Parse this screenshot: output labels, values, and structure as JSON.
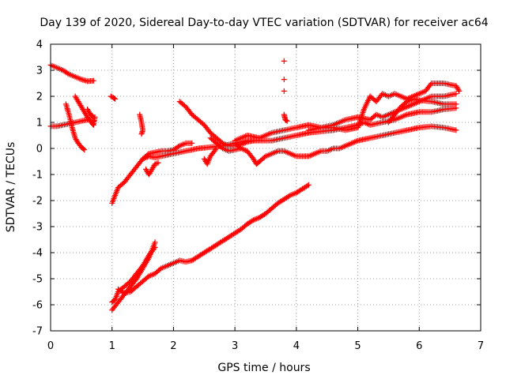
{
  "chart_data": {
    "type": "scatter",
    "title": "Day 139 of 2020, Sidereal Day-to-day VTEC variation (SDTVAR) for receiver ac64",
    "xlabel": "GPS time / hours",
    "ylabel": "SDTVAR / TECUs",
    "xlim": [
      0,
      7
    ],
    "ylim": [
      -7,
      4
    ],
    "xticks": [
      0,
      1,
      2,
      3,
      4,
      5,
      6,
      7
    ],
    "yticks": [
      -7,
      -6,
      -5,
      -4,
      -3,
      -2,
      -1,
      0,
      1,
      2,
      3,
      4
    ],
    "xtick_labels": [
      "0",
      "1",
      "2",
      "3",
      "4",
      "5",
      "6",
      "7"
    ],
    "ytick_labels": [
      "-7",
      "-6",
      "-5",
      "-4",
      "-3",
      "-2",
      "-1",
      "0",
      "1",
      "2",
      "3",
      "4"
    ],
    "grid": true,
    "marker": "plus",
    "color": "#ff0000",
    "series": [
      {
        "tracks": [
          [
            [
              0.0,
              3.2
            ],
            [
              0.1,
              3.1
            ],
            [
              0.2,
              3.0
            ],
            [
              0.3,
              2.85
            ],
            [
              0.4,
              2.75
            ],
            [
              0.5,
              2.65
            ],
            [
              0.6,
              2.58
            ],
            [
              0.7,
              2.6
            ]
          ],
          [
            [
              0.0,
              0.85
            ],
            [
              0.1,
              0.85
            ],
            [
              0.2,
              0.9
            ],
            [
              0.3,
              0.95
            ],
            [
              0.4,
              1.0
            ],
            [
              0.5,
              1.05
            ],
            [
              0.6,
              1.1
            ],
            [
              0.7,
              1.05
            ]
          ],
          [
            [
              0.25,
              1.7
            ],
            [
              0.3,
              1.3
            ],
            [
              0.35,
              0.8
            ],
            [
              0.4,
              0.4
            ],
            [
              0.45,
              0.2
            ],
            [
              0.5,
              0.05
            ],
            [
              0.55,
              -0.05
            ]
          ],
          [
            [
              0.4,
              2.0
            ],
            [
              0.45,
              1.8
            ],
            [
              0.5,
              1.6
            ],
            [
              0.55,
              1.4
            ],
            [
              0.6,
              1.2
            ],
            [
              0.65,
              1.05
            ],
            [
              0.68,
              0.95
            ],
            [
              0.7,
              0.9
            ],
            [
              0.72,
              1.2
            ]
          ],
          [
            [
              0.6,
              1.5
            ],
            [
              0.65,
              1.3
            ],
            [
              0.7,
              1.2
            ]
          ],
          [
            [
              0.98,
              2.0
            ],
            [
              1.02,
              1.95
            ],
            [
              1.05,
              1.9
            ]
          ],
          [
            [
              1.0,
              -2.1
            ],
            [
              1.05,
              -1.8
            ],
            [
              1.1,
              -1.5
            ],
            [
              1.2,
              -1.3
            ],
            [
              1.3,
              -1.0
            ],
            [
              1.4,
              -0.7
            ],
            [
              1.5,
              -0.4
            ],
            [
              1.6,
              -0.2
            ],
            [
              1.7,
              -0.15
            ],
            [
              1.8,
              -0.1
            ],
            [
              1.9,
              -0.1
            ],
            [
              2.0,
              -0.05
            ],
            [
              2.1,
              0.1
            ],
            [
              2.2,
              0.2
            ],
            [
              2.3,
              0.2
            ]
          ],
          [
            [
              1.45,
              1.3
            ],
            [
              1.48,
              1.0
            ],
            [
              1.5,
              0.7
            ],
            [
              1.48,
              0.55
            ]
          ],
          [
            [
              1.5,
              -0.4
            ],
            [
              1.6,
              -0.3
            ],
            [
              1.7,
              -0.35
            ],
            [
              1.8,
              -0.3
            ],
            [
              1.9,
              -0.25
            ],
            [
              2.0,
              -0.2
            ],
            [
              2.2,
              -0.1
            ],
            [
              2.4,
              0.0
            ],
            [
              2.6,
              0.05
            ],
            [
              2.8,
              0.1
            ],
            [
              3.0,
              0.2
            ],
            [
              3.2,
              0.3
            ],
            [
              3.4,
              0.3
            ],
            [
              3.6,
              0.3
            ],
            [
              3.8,
              0.4
            ],
            [
              4.0,
              0.5
            ],
            [
              4.2,
              0.6
            ],
            [
              4.4,
              0.65
            ],
            [
              4.6,
              0.7
            ],
            [
              4.8,
              0.8
            ],
            [
              5.0,
              0.9
            ],
            [
              5.1,
              1.0
            ],
            [
              5.2,
              0.9
            ],
            [
              5.4,
              1.0
            ],
            [
              5.6,
              1.1
            ],
            [
              5.8,
              1.3
            ],
            [
              6.0,
              1.4
            ],
            [
              6.2,
              1.4
            ],
            [
              6.4,
              1.5
            ],
            [
              6.6,
              1.55
            ]
          ],
          [
            [
              1.55,
              -0.8
            ],
            [
              1.6,
              -1.0
            ],
            [
              1.65,
              -0.8
            ],
            [
              1.7,
              -0.6
            ],
            [
              1.75,
              -0.55
            ]
          ],
          [
            [
              2.1,
              1.8
            ],
            [
              2.2,
              1.6
            ],
            [
              2.3,
              1.3
            ],
            [
              2.4,
              1.1
            ],
            [
              2.5,
              0.9
            ],
            [
              2.6,
              0.6
            ],
            [
              2.7,
              0.4
            ],
            [
              2.8,
              0.2
            ],
            [
              2.9,
              0.1
            ],
            [
              3.0,
              0.1
            ],
            [
              3.1,
              0.15
            ],
            [
              3.2,
              0.25
            ],
            [
              3.3,
              0.3
            ]
          ],
          [
            [
              2.6,
              0.4
            ],
            [
              2.7,
              0.2
            ],
            [
              2.8,
              0.0
            ],
            [
              2.9,
              -0.1
            ],
            [
              3.0,
              -0.05
            ],
            [
              3.1,
              0.0
            ]
          ],
          [
            [
              2.5,
              -0.4
            ],
            [
              2.55,
              -0.6
            ],
            [
              2.6,
              -0.3
            ],
            [
              2.7,
              0.0
            ]
          ],
          [
            [
              3.0,
              0.2
            ],
            [
              3.1,
              0.0
            ],
            [
              3.2,
              -0.1
            ],
            [
              3.3,
              -0.4
            ],
            [
              3.35,
              -0.6
            ],
            [
              3.4,
              -0.5
            ],
            [
              3.5,
              -0.3
            ],
            [
              3.6,
              -0.2
            ],
            [
              3.7,
              -0.1
            ],
            [
              3.8,
              -0.1
            ],
            [
              3.9,
              -0.2
            ],
            [
              4.0,
              -0.3
            ],
            [
              4.1,
              -0.3
            ],
            [
              4.2,
              -0.3
            ],
            [
              4.3,
              -0.2
            ],
            [
              4.4,
              -0.1
            ],
            [
              4.5,
              -0.1
            ],
            [
              4.6,
              0.0
            ],
            [
              4.7,
              0.0
            ],
            [
              4.8,
              0.1
            ],
            [
              4.9,
              0.2
            ],
            [
              5.0,
              0.3
            ],
            [
              5.2,
              0.4
            ],
            [
              5.4,
              0.5
            ],
            [
              5.6,
              0.6
            ],
            [
              5.8,
              0.7
            ],
            [
              6.0,
              0.8
            ],
            [
              6.2,
              0.85
            ],
            [
              6.4,
              0.8
            ],
            [
              6.6,
              0.7
            ]
          ],
          [
            [
              3.0,
              0.3
            ],
            [
              3.2,
              0.5
            ],
            [
              3.4,
              0.4
            ],
            [
              3.6,
              0.6
            ],
            [
              3.8,
              0.7
            ],
            [
              4.0,
              0.8
            ],
            [
              4.2,
              0.9
            ],
            [
              4.4,
              0.8
            ],
            [
              4.6,
              0.9
            ],
            [
              4.8,
              1.1
            ],
            [
              5.0,
              1.2
            ],
            [
              5.2,
              1.1
            ],
            [
              5.3,
              1.3
            ],
            [
              5.4,
              1.2
            ],
            [
              5.6,
              1.4
            ],
            [
              5.8,
              1.6
            ],
            [
              6.0,
              1.8
            ],
            [
              6.2,
              2.0
            ],
            [
              6.4,
              2.0
            ],
            [
              6.6,
              2.1
            ]
          ],
          [
            [
              3.8,
              1.3
            ],
            [
              3.82,
              1.1
            ],
            [
              3.85,
              1.05
            ]
          ],
          [
            [
              4.2,
              0.7
            ],
            [
              4.4,
              0.8
            ],
            [
              4.6,
              0.8
            ],
            [
              4.8,
              0.7
            ],
            [
              5.0,
              0.8
            ],
            [
              5.1,
              1.5
            ],
            [
              5.2,
              2.0
            ],
            [
              5.3,
              1.8
            ],
            [
              5.4,
              2.1
            ],
            [
              5.5,
              2.0
            ],
            [
              5.6,
              2.1
            ],
            [
              5.8,
              1.9
            ],
            [
              6.0,
              2.1
            ],
            [
              6.1,
              2.2
            ],
            [
              6.2,
              2.5
            ],
            [
              6.4,
              2.5
            ],
            [
              6.6,
              2.4
            ],
            [
              6.65,
              2.2
            ]
          ],
          [
            [
              5.5,
              1.0
            ],
            [
              5.6,
              1.3
            ],
            [
              5.7,
              1.6
            ],
            [
              5.8,
              1.8
            ],
            [
              5.9,
              1.9
            ],
            [
              6.0,
              1.85
            ],
            [
              6.2,
              1.8
            ],
            [
              6.4,
              1.7
            ],
            [
              6.6,
              1.7
            ]
          ],
          [
            [
              1.0,
              -6.2
            ],
            [
              1.1,
              -5.9
            ],
            [
              1.2,
              -5.6
            ],
            [
              1.3,
              -5.3
            ],
            [
              1.4,
              -5.0
            ],
            [
              1.5,
              -4.6
            ],
            [
              1.6,
              -4.2
            ],
            [
              1.7,
              -3.6
            ]
          ],
          [
            [
              1.0,
              -5.9
            ],
            [
              1.05,
              -5.8
            ],
            [
              1.1,
              -5.5
            ],
            [
              1.2,
              -5.3
            ],
            [
              1.3,
              -5.1
            ],
            [
              1.4,
              -4.8
            ],
            [
              1.5,
              -4.5
            ],
            [
              1.6,
              -4.1
            ],
            [
              1.7,
              -3.8
            ]
          ],
          [
            [
              1.1,
              -5.4
            ],
            [
              1.2,
              -5.55
            ],
            [
              1.3,
              -5.5
            ],
            [
              1.4,
              -5.3
            ],
            [
              1.5,
              -5.1
            ],
            [
              1.6,
              -4.9
            ],
            [
              1.7,
              -4.8
            ],
            [
              1.8,
              -4.6
            ],
            [
              1.9,
              -4.5
            ],
            [
              2.0,
              -4.4
            ],
            [
              2.1,
              -4.3
            ],
            [
              2.2,
              -4.35
            ],
            [
              2.3,
              -4.3
            ],
            [
              2.4,
              -4.15
            ],
            [
              2.5,
              -4.0
            ],
            [
              2.6,
              -3.85
            ],
            [
              2.7,
              -3.7
            ],
            [
              2.8,
              -3.55
            ],
            [
              2.9,
              -3.4
            ],
            [
              3.0,
              -3.25
            ],
            [
              3.1,
              -3.1
            ],
            [
              3.2,
              -2.9
            ],
            [
              3.3,
              -2.75
            ],
            [
              3.4,
              -2.65
            ],
            [
              3.5,
              -2.5
            ],
            [
              3.6,
              -2.3
            ],
            [
              3.7,
              -2.1
            ],
            [
              3.8,
              -1.95
            ],
            [
              3.9,
              -1.8
            ],
            [
              4.0,
              -1.7
            ],
            [
              4.1,
              -1.55
            ],
            [
              4.2,
              -1.4
            ]
          ]
        ]
      }
    ],
    "isolated_points": [
      [
        3.8,
        3.35
      ],
      [
        3.8,
        2.65
      ],
      [
        3.8,
        2.2
      ]
    ]
  }
}
